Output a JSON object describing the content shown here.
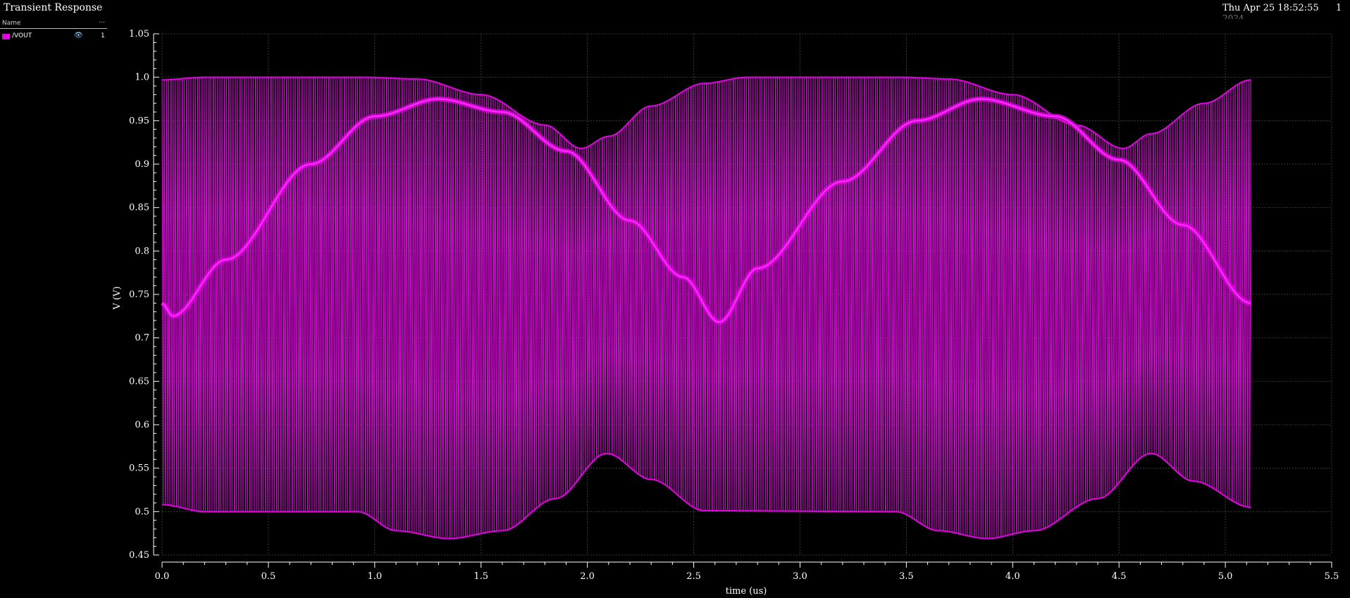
{
  "window": {
    "title": "Transient Response",
    "date": "Thu Apr 25 18:52:55",
    "date_line2": "2024",
    "page": "1"
  },
  "legend": {
    "header_name": "Name",
    "header_more": "...",
    "items": [
      {
        "name": "/VOUT",
        "icon": "eye-icon",
        "index": "1",
        "color": "#e600e6"
      }
    ]
  },
  "chart_data": {
    "type": "line",
    "title": "Transient Response",
    "xlabel": "time (us)",
    "ylabel": "V (V)",
    "xlim": [
      0.0,
      5.5
    ],
    "ylim": [
      0.45,
      1.05
    ],
    "xticks": [
      "0.0",
      "0.5",
      "1.0",
      "1.5",
      "2.0",
      "2.5",
      "3.0",
      "3.5",
      "4.0",
      "4.5",
      "5.0",
      "5.5"
    ],
    "yticks": [
      "0.45",
      "0.5",
      "0.55",
      "0.6",
      "0.65",
      "0.7",
      "0.75",
      "0.8",
      "0.85",
      "0.9",
      "0.95",
      "1.0",
      "1.05"
    ],
    "grid": true,
    "series": [
      {
        "name": "/VOUT",
        "color": "#e600e6",
        "x_range": [
          0.0,
          5.12
        ],
        "upper_envelope": {
          "x": [
            0.0,
            0.2,
            0.95,
            1.2,
            1.5,
            1.8,
            1.97,
            2.1,
            2.3,
            2.55,
            2.75,
            3.48,
            3.7,
            4.0,
            4.3,
            4.52,
            4.65,
            4.9,
            5.12
          ],
          "y": [
            0.997,
            1.0,
            1.0,
            0.998,
            0.98,
            0.945,
            0.918,
            0.932,
            0.967,
            0.993,
            1.0,
            1.0,
            0.998,
            0.98,
            0.945,
            0.918,
            0.935,
            0.97,
            0.997
          ]
        },
        "lower_envelope": {
          "x": [
            0.0,
            0.2,
            0.92,
            1.1,
            1.35,
            1.6,
            1.85,
            2.09,
            2.3,
            2.55,
            3.45,
            3.65,
            3.88,
            4.1,
            4.4,
            4.65,
            4.85,
            5.12
          ],
          "y": [
            0.508,
            0.5,
            0.5,
            0.478,
            0.469,
            0.478,
            0.515,
            0.567,
            0.537,
            0.501,
            0.5,
            0.478,
            0.469,
            0.478,
            0.515,
            0.567,
            0.535,
            0.505
          ]
        },
        "mid_trace": {
          "x": [
            0.0,
            0.05,
            0.3,
            0.7,
            1.0,
            1.3,
            1.6,
            1.9,
            2.2,
            2.45,
            2.62,
            2.8,
            3.2,
            3.55,
            3.85,
            4.2,
            4.5,
            4.8,
            5.12
          ],
          "y": [
            0.74,
            0.725,
            0.79,
            0.9,
            0.955,
            0.975,
            0.96,
            0.915,
            0.835,
            0.77,
            0.718,
            0.78,
            0.88,
            0.95,
            0.975,
            0.955,
            0.905,
            0.83,
            0.74
          ]
        }
      }
    ]
  }
}
